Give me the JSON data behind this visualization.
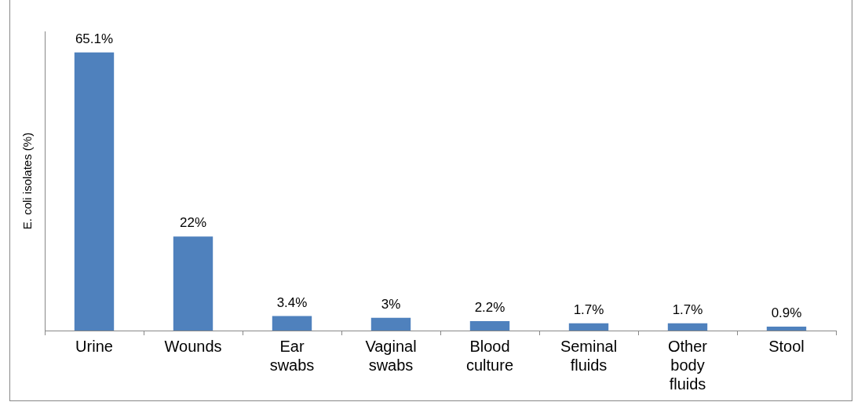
{
  "chart_data": {
    "type": "bar",
    "ylabel": "E. coli isolates (%)",
    "categories": [
      "Urine",
      "Wounds",
      "Ear swabs",
      "Vaginal swabs",
      "Blood culture",
      "Seminal fluids",
      "Other body fluids",
      "Stool"
    ],
    "values": [
      65.1,
      22,
      3.4,
      3,
      2.2,
      1.7,
      1.7,
      0.9
    ],
    "value_labels": [
      "65.1%",
      "22%",
      "3.4%",
      "3%",
      "2.2%",
      "1.7%",
      "1.7%",
      "0.9%"
    ],
    "color": "#4f81bd",
    "grid": false,
    "legend": false
  }
}
